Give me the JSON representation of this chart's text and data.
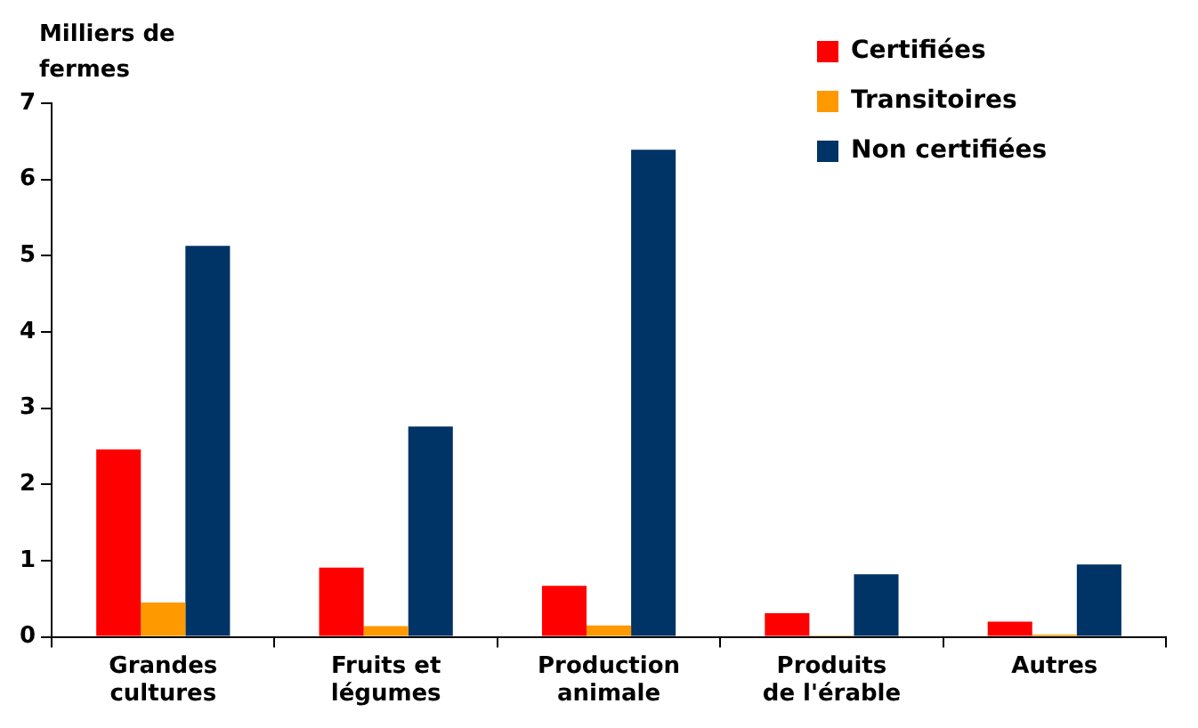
{
  "chart_data": {
    "type": "bar",
    "ylabel": "Milliers de fermes",
    "categories": [
      "Grandes cultures",
      "Fruits et légumes",
      "Production animale",
      "Produits de l'érable",
      "Autres"
    ],
    "series": [
      {
        "name": "Certifiées",
        "color": "#ff0000",
        "values": [
          2.46,
          0.91,
          0.67,
          0.31,
          0.2
        ]
      },
      {
        "name": "Transitoires",
        "color": "#ff9900",
        "values": [
          0.45,
          0.14,
          0.15,
          0.02,
          0.03
        ]
      },
      {
        "name": "Non certifiées",
        "color": "#003366",
        "values": [
          5.13,
          2.76,
          6.39,
          0.82,
          0.95
        ]
      }
    ],
    "ylim": [
      0,
      7
    ],
    "yticks": [
      0,
      1,
      2,
      3,
      4,
      5,
      6,
      7
    ],
    "grid": false,
    "legend": "top right"
  }
}
